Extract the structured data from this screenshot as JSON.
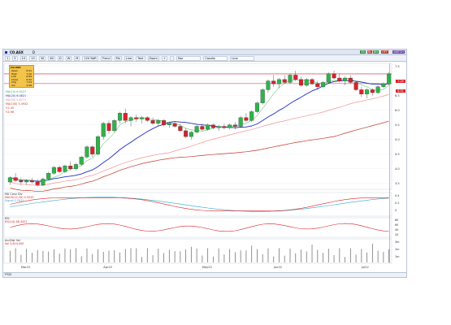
{
  "window": {
    "title": "CO.ASX",
    "interval": "D",
    "controls": [
      "_",
      "□",
      "×"
    ]
  },
  "toolbar": {
    "buttons": [
      "1",
      "5",
      "10",
      "15",
      "30",
      "60",
      "D",
      "W",
      "M"
    ],
    "period": "120 BAR",
    "studies": [
      "Trend",
      "Fib",
      "Line",
      "Text",
      "Zoom",
      "+",
      "-",
      "Bar",
      "Candle",
      "Line"
    ],
    "indicators": [
      {
        "label": "BS",
        "color": "#2e8b3e"
      },
      {
        "label": "BL",
        "color": "#c0392b"
      },
      {
        "label": "BN",
        "color": "#2e8b3e"
      },
      {
        "label": "OFT",
        "color": "#c0392b"
      },
      {
        "label": "WATCH",
        "color": "#6a3fa0"
      }
    ]
  },
  "infobox": {
    "title": "CO.ASX",
    "rows": [
      {
        "label": "Open",
        "value": "6.91"
      },
      {
        "label": "High",
        "value": "7.20"
      },
      {
        "label": "Low",
        "value": "6.89"
      },
      {
        "label": "Close",
        "value": "6.92"
      },
      {
        "label": "Chg",
        "value": "7.24"
      },
      {
        "label": "Vol",
        "value": "3.58"
      }
    ]
  },
  "legend": {
    "ma1": "MA(10) 6.5427",
    "ma2": "MA(20) 6.0821",
    "ma3": "MA(50) 5.8771",
    "ma4": "MA(100) 5.3932",
    "ma5": "Y.2.45",
    "ma6": "Y.4.96"
  },
  "colors": {
    "bull": "#2fb34a",
    "bear": "#d8232a",
    "ma_fast": "#3cb44b",
    "ma_mid": "#1f2dbf",
    "ma_slow": "#f08080",
    "ma_long": "#c0392b"
  },
  "price_labels": [
    {
      "value": "7.24",
      "color": "#d8232a"
    },
    {
      "value": "6.91",
      "color": "#d8232a"
    }
  ],
  "price_axis": [
    "7.5",
    "7.0",
    "6.5",
    "6.0",
    "5.5",
    "5.0",
    "4.5",
    "4.0",
    "3.5"
  ],
  "time_axis": [
    "Mar22",
    "Apr22",
    "May22",
    "Jun22",
    "Jul22"
  ],
  "sub1": {
    "title": "MA Conv Div",
    "line1": "MACD(12,26) 0.3233",
    "line2": "Signal 0.2931",
    "axis": [
      "0.4",
      "0.2",
      "0"
    ]
  },
  "sub2": {
    "title": "RSI",
    "line1": "RSI(14) 66.3427",
    "axis": [
      "80",
      "60",
      "40",
      "20"
    ]
  },
  "sub3": {
    "title": "AccDist Vol",
    "line1": "Vol 3,624,000",
    "axis": [
      "3m",
      "2m",
      "1m"
    ]
  },
  "footer": {
    "text": "FY22"
  },
  "chart_data": {
    "type": "candlestick",
    "ylim": [
      3.3,
      7.6
    ],
    "candles": [
      [
        3.55,
        3.75,
        3.45,
        3.7
      ],
      [
        3.7,
        3.85,
        3.55,
        3.6
      ],
      [
        3.6,
        3.7,
        3.45,
        3.55
      ],
      [
        3.55,
        3.65,
        3.45,
        3.6
      ],
      [
        3.6,
        3.7,
        3.5,
        3.55
      ],
      [
        3.55,
        3.65,
        3.4,
        3.45
      ],
      [
        3.45,
        3.7,
        3.4,
        3.65
      ],
      [
        3.65,
        3.9,
        3.6,
        3.85
      ],
      [
        3.85,
        4.1,
        3.8,
        4.05
      ],
      [
        4.05,
        4.1,
        3.85,
        3.9
      ],
      [
        3.9,
        4.15,
        3.85,
        4.1
      ],
      [
        4.1,
        4.25,
        3.95,
        4.0
      ],
      [
        4.0,
        4.2,
        3.95,
        4.15
      ],
      [
        4.15,
        4.45,
        4.1,
        4.4
      ],
      [
        4.4,
        4.8,
        4.35,
        4.75
      ],
      [
        4.75,
        4.8,
        4.4,
        4.5
      ],
      [
        4.5,
        5.15,
        4.45,
        5.1
      ],
      [
        5.1,
        5.6,
        5.0,
        5.55
      ],
      [
        5.55,
        5.65,
        5.2,
        5.3
      ],
      [
        5.3,
        5.7,
        5.25,
        5.65
      ],
      [
        5.65,
        5.95,
        5.55,
        5.9
      ],
      [
        5.9,
        6.05,
        5.55,
        5.65
      ],
      [
        5.65,
        5.8,
        5.45,
        5.75
      ],
      [
        5.75,
        5.85,
        5.6,
        5.7
      ],
      [
        5.7,
        5.8,
        5.55,
        5.75
      ],
      [
        5.75,
        5.8,
        5.6,
        5.65
      ],
      [
        5.65,
        5.75,
        5.5,
        5.55
      ],
      [
        5.55,
        5.7,
        5.45,
        5.65
      ],
      [
        5.65,
        5.7,
        5.45,
        5.5
      ],
      [
        5.5,
        5.6,
        5.4,
        5.55
      ],
      [
        5.55,
        5.6,
        5.4,
        5.45
      ],
      [
        5.45,
        5.55,
        5.25,
        5.3
      ],
      [
        5.3,
        5.4,
        5.05,
        5.1
      ],
      [
        5.1,
        5.3,
        5.0,
        5.25
      ],
      [
        5.25,
        5.5,
        5.2,
        5.45
      ],
      [
        5.45,
        5.55,
        5.3,
        5.35
      ],
      [
        5.35,
        5.55,
        5.3,
        5.5
      ],
      [
        5.5,
        5.55,
        5.35,
        5.4
      ],
      [
        5.4,
        5.5,
        5.3,
        5.45
      ],
      [
        5.45,
        5.55,
        5.35,
        5.4
      ],
      [
        5.4,
        5.55,
        5.35,
        5.5
      ],
      [
        5.5,
        5.6,
        5.35,
        5.45
      ],
      [
        5.45,
        5.8,
        5.4,
        5.75
      ],
      [
        5.75,
        5.9,
        5.6,
        5.65
      ],
      [
        5.65,
        6.0,
        5.6,
        5.95
      ],
      [
        5.95,
        6.3,
        5.9,
        6.25
      ],
      [
        6.25,
        6.75,
        6.2,
        6.7
      ],
      [
        6.7,
        7.05,
        6.6,
        7.0
      ],
      [
        7.0,
        7.2,
        6.8,
        6.9
      ],
      [
        6.9,
        7.1,
        6.75,
        7.05
      ],
      [
        7.05,
        7.2,
        6.9,
        6.95
      ],
      [
        6.95,
        7.25,
        6.9,
        7.2
      ],
      [
        7.2,
        7.35,
        7.0,
        7.05
      ],
      [
        7.05,
        7.15,
        6.8,
        6.85
      ],
      [
        6.85,
        7.1,
        6.8,
        7.05
      ],
      [
        7.05,
        7.1,
        6.85,
        6.9
      ],
      [
        6.9,
        7.0,
        6.7,
        6.8
      ],
      [
        6.8,
        7.0,
        6.75,
        6.95
      ],
      [
        6.95,
        7.3,
        6.9,
        7.25
      ],
      [
        7.25,
        7.35,
        7.05,
        7.1
      ],
      [
        7.1,
        7.25,
        6.95,
        7.0
      ],
      [
        7.0,
        7.15,
        6.85,
        7.1
      ],
      [
        7.1,
        7.2,
        6.9,
        6.95
      ],
      [
        6.95,
        7.0,
        6.65,
        6.7
      ],
      [
        6.7,
        6.8,
        6.45,
        6.55
      ],
      [
        6.55,
        6.75,
        6.4,
        6.7
      ],
      [
        6.7,
        6.75,
        6.5,
        6.6
      ],
      [
        6.6,
        6.85,
        6.55,
        6.8
      ],
      [
        6.8,
        6.95,
        6.75,
        6.9
      ],
      [
        6.9,
        7.3,
        6.85,
        7.24
      ]
    ]
  }
}
